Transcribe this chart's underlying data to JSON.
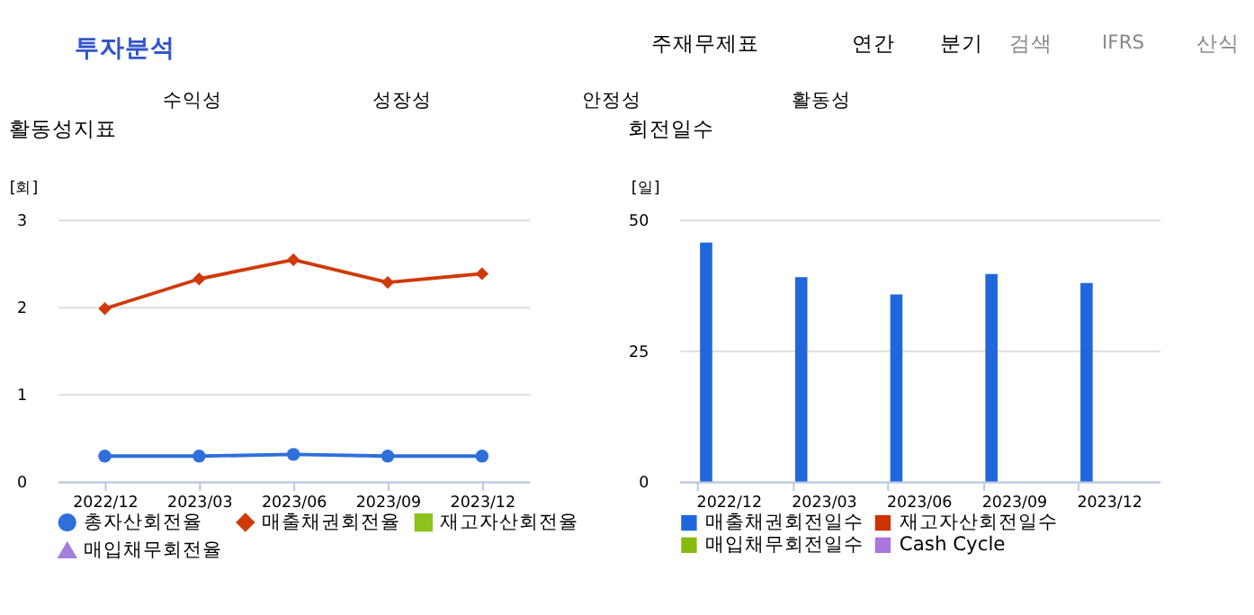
{
  "chart_data": [
    {
      "type": "other",
      "annotations": [
        "투자분석",
        "주재무제표",
        "연간",
        "분기",
        "검색",
        "IFRS",
        "산식",
        "수익성",
        "성장성",
        "안정성",
        "활동성"
      ]
    },
    {
      "type": "line",
      "title": "활동성지표",
      "ylabel": "[회]",
      "categories": [
        "2022/12",
        "2023/03",
        "2023/06",
        "2023/09",
        "2023/12"
      ],
      "ylim": [
        0,
        3
      ],
      "yticks": [
        0,
        1,
        2,
        3
      ],
      "grid": "y",
      "legend": "bottom",
      "series": [
        {
          "name": "총자산회전율",
          "color": "#2e6fdc",
          "marker": "circle",
          "values": [
            0.29,
            0.29,
            0.31,
            0.29,
            0.29
          ]
        },
        {
          "name": "매출채권회전율",
          "color": "#d03a0a",
          "marker": "diamond",
          "values": [
            1.98,
            2.32,
            2.54,
            2.28,
            2.38
          ]
        },
        {
          "name": "재고자산회전율",
          "color": "#8cc21a",
          "marker": "square",
          "values": [
            null,
            null,
            null,
            null,
            null
          ]
        },
        {
          "name": "매입채무회전율",
          "color": "#a57fdb",
          "marker": "triangle",
          "values": [
            null,
            null,
            null,
            null,
            null
          ]
        }
      ]
    },
    {
      "type": "bar",
      "title": "회전일수",
      "ylabel": "[일]",
      "categories": [
        "2022/12",
        "2023/03",
        "2023/06",
        "2023/09",
        "2023/12"
      ],
      "ylim": [
        0,
        50
      ],
      "yticks": [
        0,
        25,
        50
      ],
      "grid": "y",
      "legend": "bottom",
      "series": [
        {
          "name": "매출채권회전일수",
          "color": "#2266dd",
          "values": [
            45.6,
            39.0,
            35.7,
            39.6,
            37.9
          ]
        },
        {
          "name": "재고자산회전일수",
          "color": "#cc3300",
          "values": [
            null,
            null,
            null,
            null,
            null
          ]
        },
        {
          "name": "매입채무회전일수",
          "color": "#88bb11",
          "values": [
            null,
            null,
            null,
            null,
            null
          ]
        },
        {
          "name": "Cash Cycle",
          "color": "#aa77dd",
          "values": [
            null,
            null,
            null,
            null,
            null
          ]
        }
      ]
    }
  ]
}
